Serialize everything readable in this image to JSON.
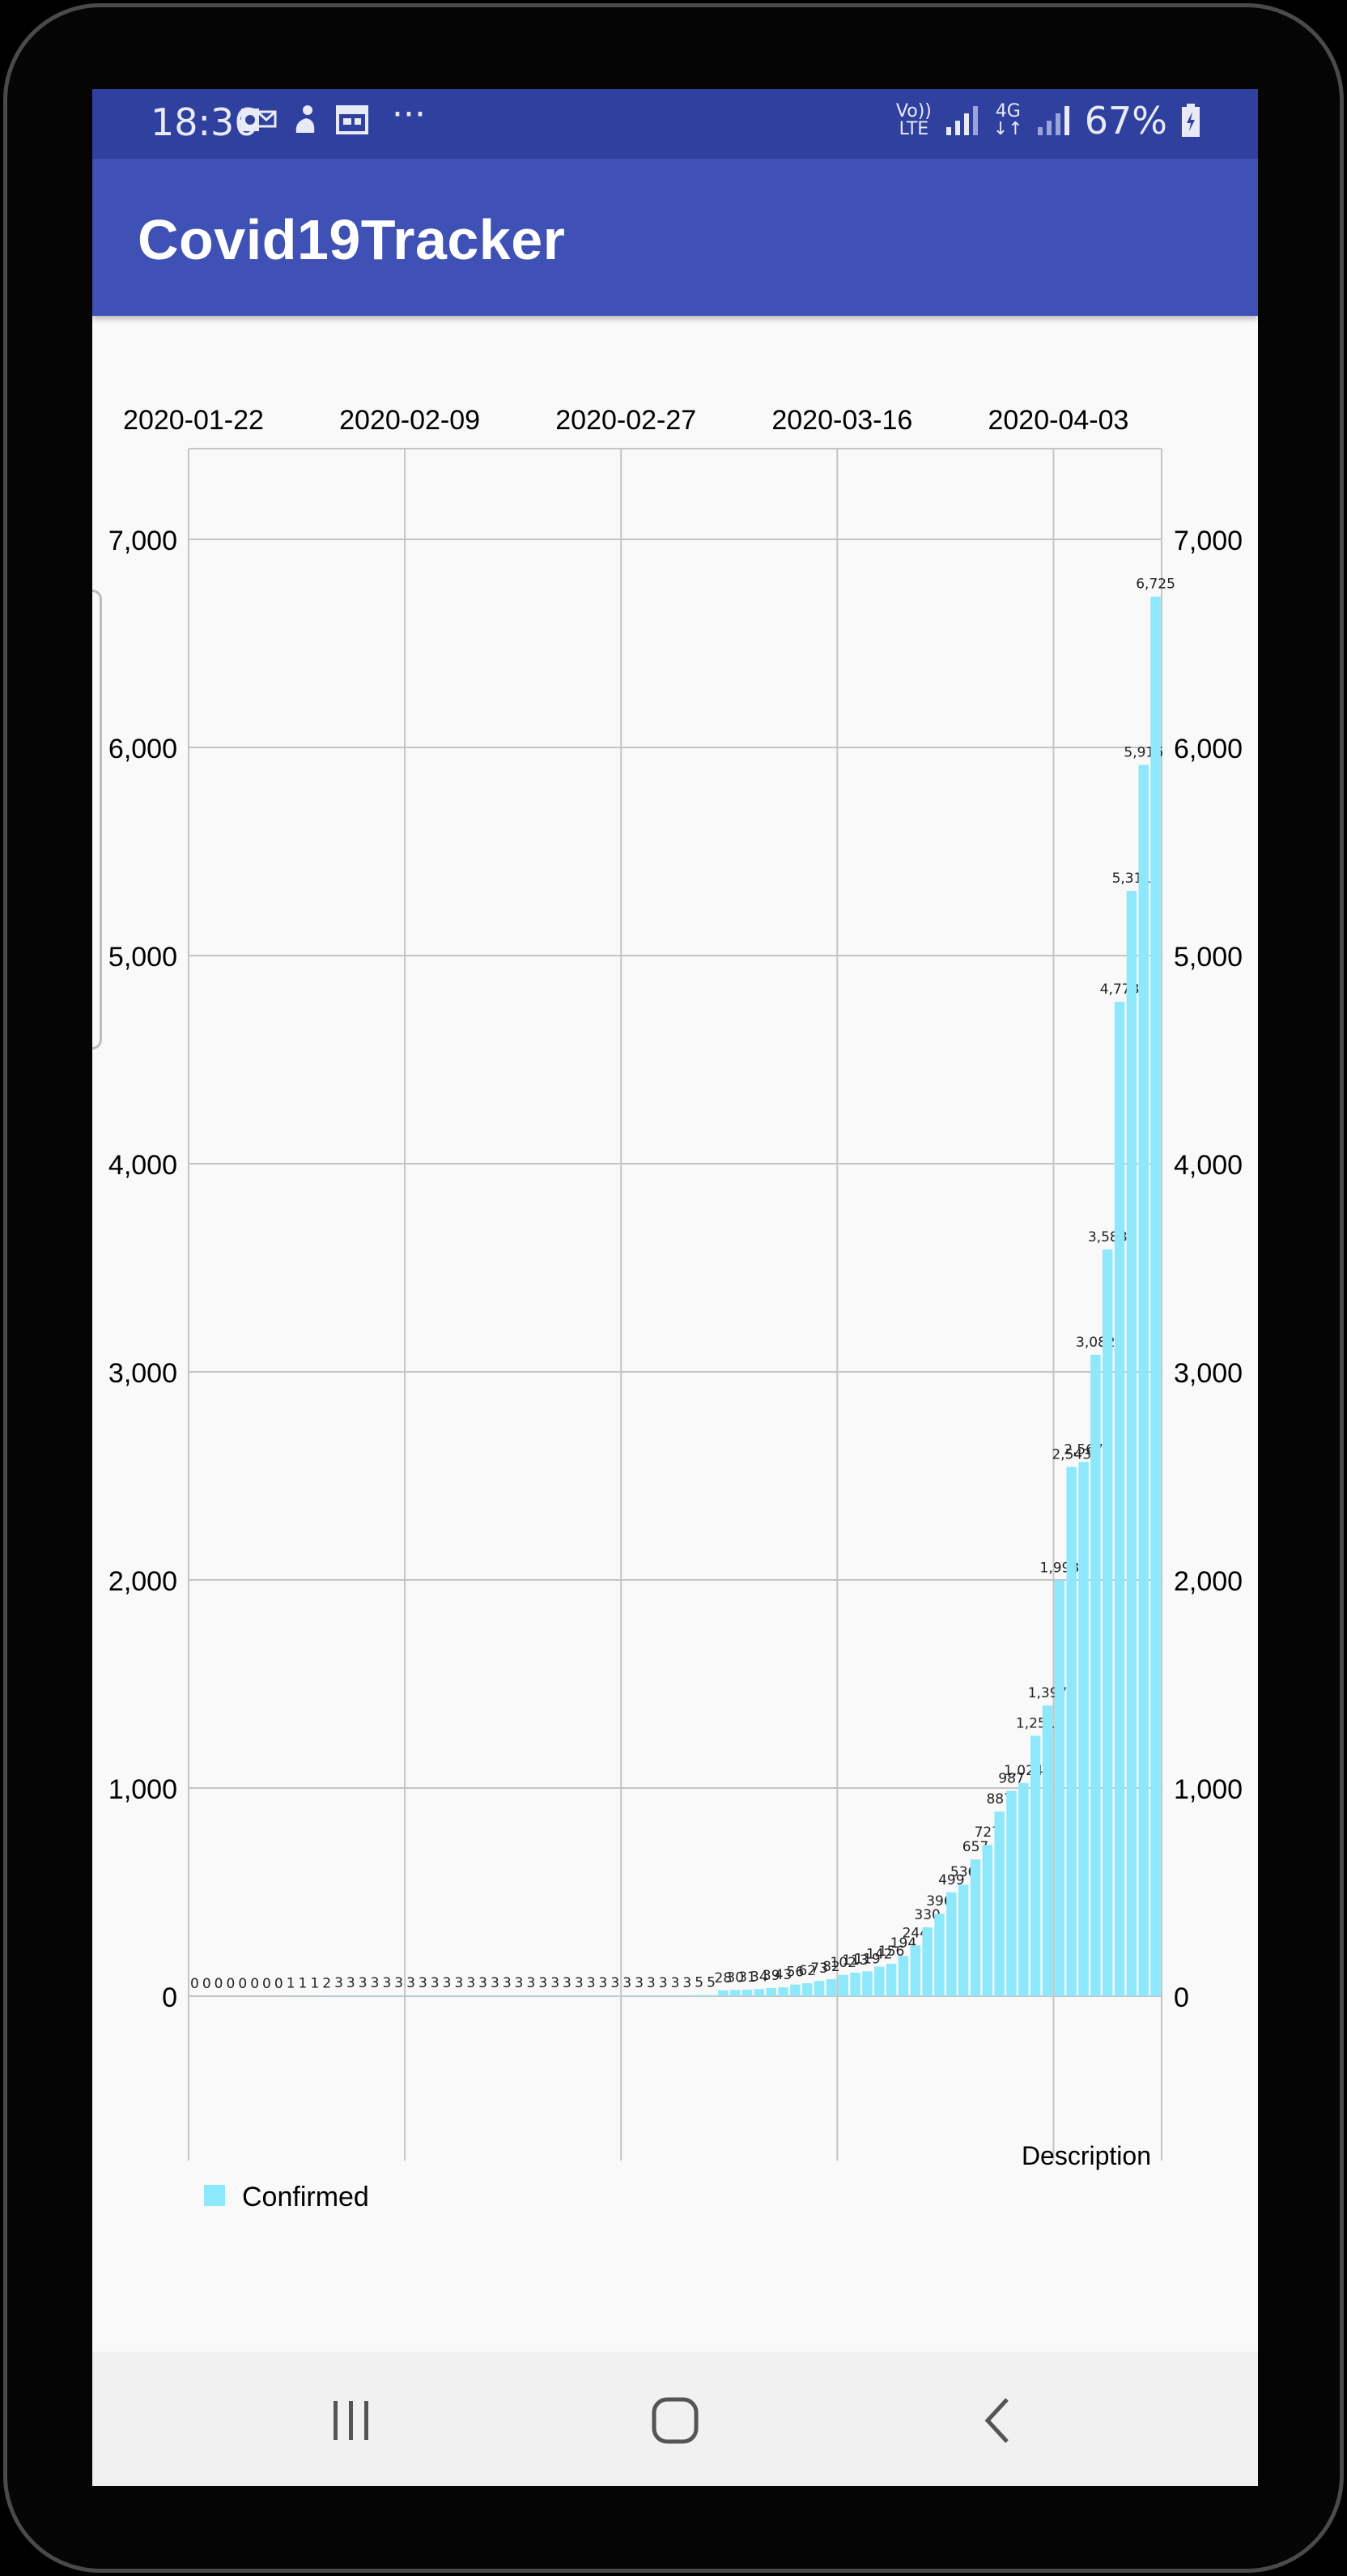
{
  "status_bar": {
    "time": "18:36",
    "notification_icons": [
      "outlook-icon",
      "app-notification-icon",
      "calendar-icon",
      "more-icon"
    ],
    "more": "···",
    "volte": "Vo))",
    "lte": "LTE",
    "network": "4G",
    "battery": "67%"
  },
  "app_bar": {
    "title": "Covid19Tracker"
  },
  "chart_data": {
    "type": "bar",
    "x_axis_labels": [
      "2020-01-22",
      "2020-02-09",
      "2020-02-27",
      "2020-03-16",
      "2020-04-03"
    ],
    "y_ticks": [
      "0",
      "1,000",
      "2,000",
      "3,000",
      "4,000",
      "5,000",
      "6,000",
      "7,000"
    ],
    "ylim": [
      -680,
      7400
    ],
    "grid": true,
    "description": "Description",
    "legend": "Confirmed",
    "legend_placement": "bottom-left",
    "colors": {
      "bar": "#8ee8fc",
      "grid": "#c4c4c4",
      "text": "#000000"
    },
    "series": [
      {
        "name": "Confirmed",
        "values": [
          0,
          0,
          0,
          0,
          0,
          0,
          0,
          0,
          1,
          1,
          1,
          2,
          3,
          3,
          3,
          3,
          3,
          3,
          3,
          3,
          3,
          3,
          3,
          3,
          3,
          3,
          3,
          3,
          3,
          3,
          3,
          3,
          3,
          3,
          3,
          3,
          3,
          3,
          3,
          3,
          3,
          3,
          5,
          5,
          28,
          30,
          31,
          34,
          39,
          43,
          56,
          62,
          73,
          82,
          102,
          113,
          119,
          142,
          156,
          194,
          244,
          330,
          396,
          499,
          536,
          657,
          727,
          887,
          987,
          1024,
          1251,
          1397,
          1998,
          2543,
          2567,
          3082,
          3588,
          4778,
          5311,
          5916,
          6725
        ],
        "labels": [
          "0",
          "0",
          "0",
          "0",
          "0",
          "0",
          "0",
          "0",
          "1",
          "1",
          "1",
          "2",
          "3",
          "3",
          "3",
          "3",
          "3",
          "3",
          "3",
          "3",
          "3",
          "3",
          "3",
          "3",
          "3",
          "3",
          "3",
          "3",
          "3",
          "3",
          "3",
          "3",
          "3",
          "3",
          "3",
          "3",
          "3",
          "3",
          "3",
          "3",
          "3",
          "3",
          "5",
          "5",
          "28",
          "30",
          "31",
          "34",
          "39",
          "43",
          "56",
          "62",
          "73",
          "82",
          "102",
          "113",
          "119",
          "142",
          "156",
          "194",
          "244",
          "330",
          "396",
          "499",
          "536",
          "657",
          "727",
          "887",
          "987",
          "1,024",
          "1,251",
          "1,397",
          "1,998",
          "2,543",
          "2,567",
          "3,082",
          "3,588",
          "4,778",
          "5,311",
          "5,916",
          "6,725"
        ]
      }
    ]
  },
  "nav_bar": {
    "buttons": [
      "recent-apps",
      "home",
      "back"
    ]
  }
}
